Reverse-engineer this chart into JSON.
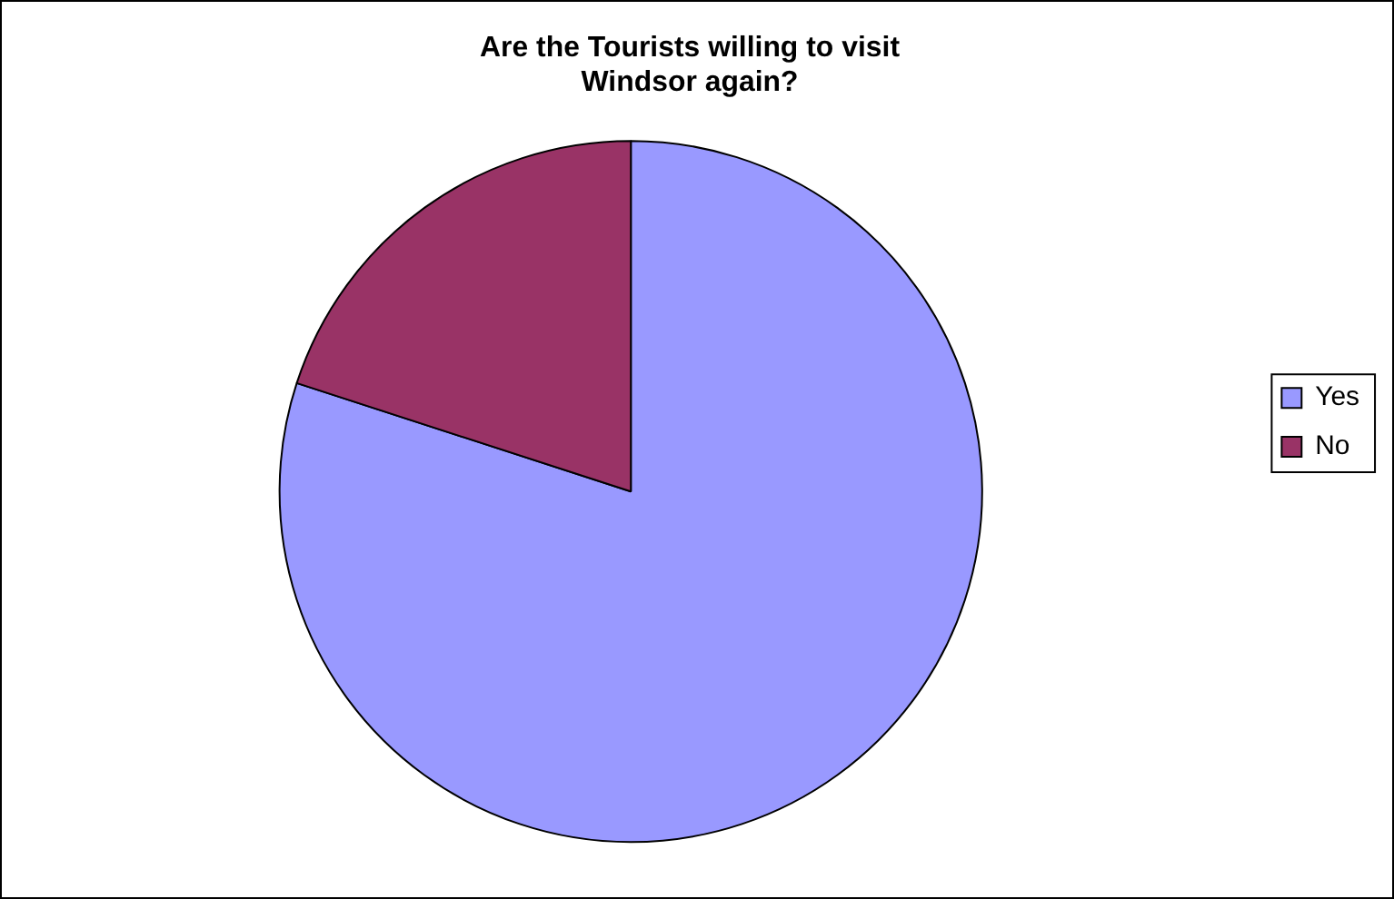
{
  "chart_data": {
    "type": "pie",
    "title": "Are the Tourists willing to visit Windsor again?",
    "categories": [
      "Yes",
      "No"
    ],
    "values": [
      80,
      20
    ],
    "colors": [
      "#9999ff",
      "#993366"
    ],
    "legend": "right"
  }
}
